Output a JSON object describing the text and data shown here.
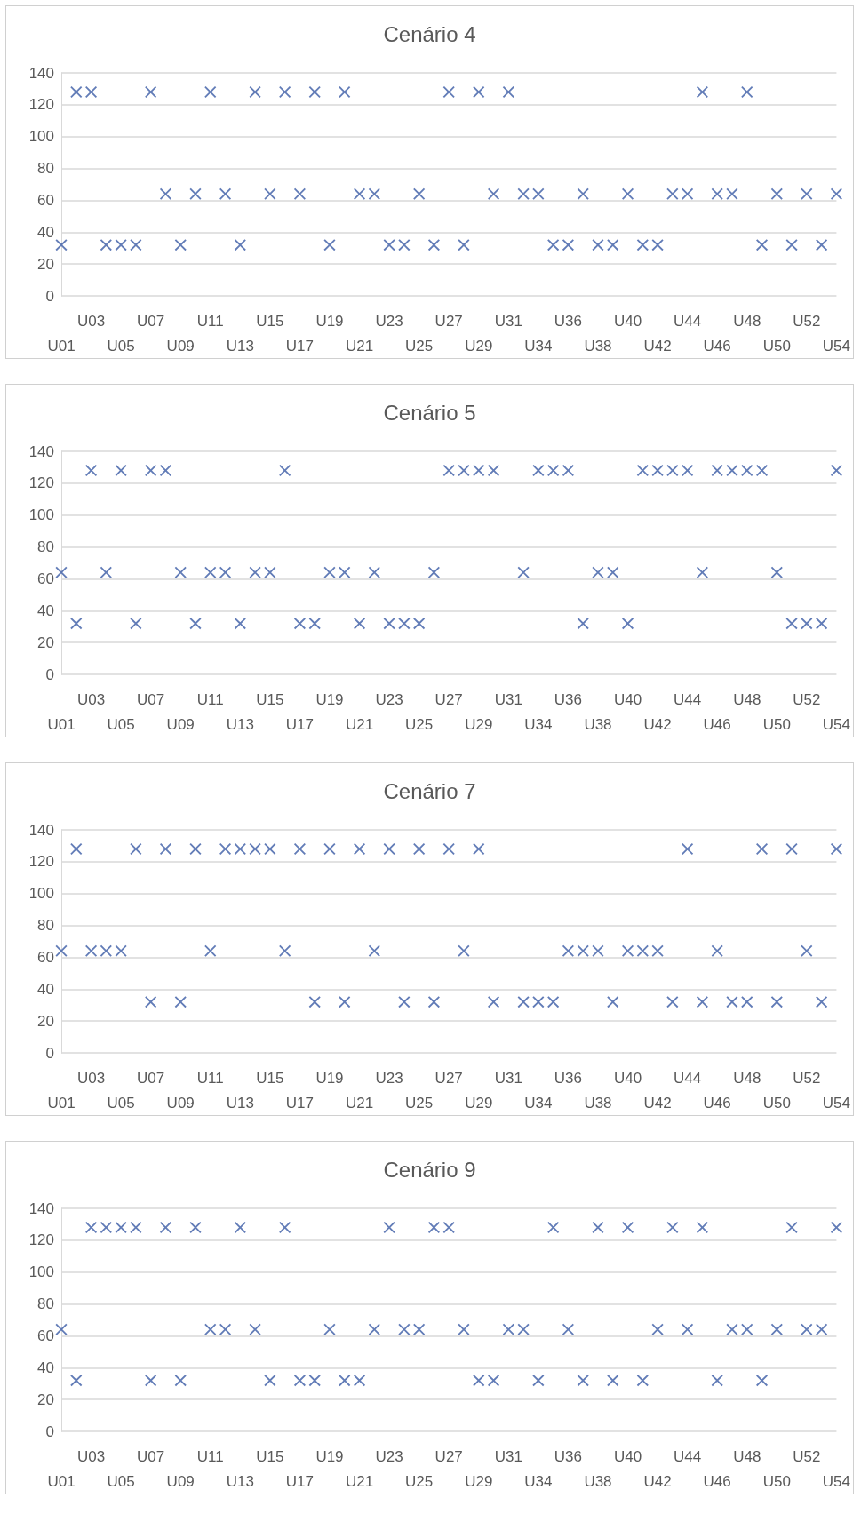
{
  "chart_data": [
    {
      "type": "scatter",
      "title": "Cenário 4",
      "categories": [
        "U01",
        null,
        "U03",
        null,
        "U05",
        null,
        "U07",
        null,
        "U09",
        null,
        "U11",
        null,
        "U13",
        null,
        "U15",
        null,
        "U17",
        null,
        "U19",
        null,
        "U21",
        null,
        "U23",
        null,
        "U25",
        null,
        "U27",
        null,
        "U29",
        null,
        "U31",
        null,
        "U34",
        null,
        "U36",
        null,
        "U38",
        null,
        "U40",
        null,
        "U42",
        null,
        "U44",
        null,
        "U46",
        null,
        "U48",
        null,
        "U50",
        null,
        "U52",
        null,
        "U54"
      ],
      "values": [
        32,
        128,
        128,
        32,
        32,
        32,
        128,
        64,
        32,
        64,
        128,
        64,
        32,
        128,
        64,
        128,
        64,
        128,
        32,
        128,
        64,
        64,
        32,
        32,
        64,
        32,
        128,
        32,
        128,
        64,
        128,
        64,
        64,
        32,
        32,
        64,
        32,
        32,
        64,
        32,
        32,
        64,
        64,
        128,
        64,
        64,
        128,
        32,
        64,
        32,
        64,
        32,
        64
      ],
      "color": "#3b5ba5",
      "ylim": [
        0,
        140
      ],
      "yticks": [
        0,
        20,
        40,
        60,
        80,
        100,
        120,
        140
      ],
      "grid": "y",
      "marker": "cross"
    },
    {
      "type": "scatter",
      "title": "Cenário 5",
      "categories": [
        "U01",
        null,
        "U03",
        null,
        "U05",
        null,
        "U07",
        null,
        "U09",
        null,
        "U11",
        null,
        "U13",
        null,
        "U15",
        null,
        "U17",
        null,
        "U19",
        null,
        "U21",
        null,
        "U23",
        null,
        "U25",
        null,
        "U27",
        null,
        "U29",
        null,
        "U31",
        null,
        "U34",
        null,
        "U36",
        null,
        "U38",
        null,
        "U40",
        null,
        "U42",
        null,
        "U44",
        null,
        "U46",
        null,
        "U48",
        null,
        "U50",
        null,
        "U52",
        null,
        "U54"
      ],
      "values": [
        64,
        32,
        128,
        64,
        128,
        32,
        128,
        128,
        64,
        32,
        64,
        64,
        32,
        64,
        64,
        128,
        32,
        32,
        64,
        64,
        32,
        64,
        32,
        32,
        32,
        64,
        128,
        128,
        128,
        128,
        null,
        64,
        128,
        128,
        128,
        32,
        64,
        64,
        32,
        128,
        128,
        128,
        128,
        64,
        128,
        128,
        128,
        128,
        64,
        32,
        32,
        32,
        128
      ],
      "color": "#3b5ba5",
      "ylim": [
        0,
        140
      ],
      "yticks": [
        0,
        20,
        40,
        60,
        80,
        100,
        120,
        140
      ],
      "grid": "y",
      "marker": "cross"
    },
    {
      "type": "scatter",
      "title": "Cenário 7",
      "categories": [
        "U01",
        null,
        "U03",
        null,
        "U05",
        null,
        "U07",
        null,
        "U09",
        null,
        "U11",
        null,
        "U13",
        null,
        "U15",
        null,
        "U17",
        null,
        "U19",
        null,
        "U21",
        null,
        "U23",
        null,
        "U25",
        null,
        "U27",
        null,
        "U29",
        null,
        "U31",
        null,
        "U34",
        null,
        "U36",
        null,
        "U38",
        null,
        "U40",
        null,
        "U42",
        null,
        "U44",
        null,
        "U46",
        null,
        "U48",
        null,
        "U50",
        null,
        "U52",
        null,
        "U54"
      ],
      "values": [
        64,
        128,
        64,
        64,
        64,
        128,
        32,
        128,
        32,
        128,
        64,
        128,
        128,
        128,
        128,
        64,
        128,
        32,
        128,
        32,
        128,
        64,
        128,
        32,
        128,
        32,
        128,
        64,
        128,
        32,
        null,
        32,
        32,
        32,
        64,
        64,
        64,
        32,
        64,
        64,
        64,
        32,
        128,
        32,
        64,
        32,
        32,
        128,
        32,
        128,
        64,
        32,
        128
      ],
      "color": "#3b5ba5",
      "ylim": [
        0,
        140
      ],
      "yticks": [
        0,
        20,
        40,
        60,
        80,
        100,
        120,
        140
      ],
      "grid": "y",
      "marker": "cross"
    },
    {
      "type": "scatter",
      "title": "Cenário 9",
      "categories": [
        "U01",
        null,
        "U03",
        null,
        "U05",
        null,
        "U07",
        null,
        "U09",
        null,
        "U11",
        null,
        "U13",
        null,
        "U15",
        null,
        "U17",
        null,
        "U19",
        null,
        "U21",
        null,
        "U23",
        null,
        "U25",
        null,
        "U27",
        null,
        "U29",
        null,
        "U31",
        null,
        "U34",
        null,
        "U36",
        null,
        "U38",
        null,
        "U40",
        null,
        "U42",
        null,
        "U44",
        null,
        "U46",
        null,
        "U48",
        null,
        "U50",
        null,
        "U52",
        null,
        "U54"
      ],
      "values": [
        64,
        32,
        128,
        128,
        128,
        128,
        32,
        128,
        32,
        128,
        64,
        64,
        128,
        64,
        32,
        128,
        32,
        32,
        64,
        32,
        32,
        64,
        128,
        64,
        64,
        128,
        128,
        64,
        32,
        32,
        64,
        64,
        32,
        128,
        64,
        32,
        128,
        32,
        128,
        32,
        64,
        128,
        64,
        128,
        32,
        64,
        64,
        32,
        64,
        128,
        64,
        64,
        128
      ],
      "color": "#3b5ba5",
      "ylim": [
        0,
        140
      ],
      "yticks": [
        0,
        20,
        40,
        60,
        80,
        100,
        120,
        140
      ],
      "grid": "y",
      "marker": "cross"
    }
  ]
}
